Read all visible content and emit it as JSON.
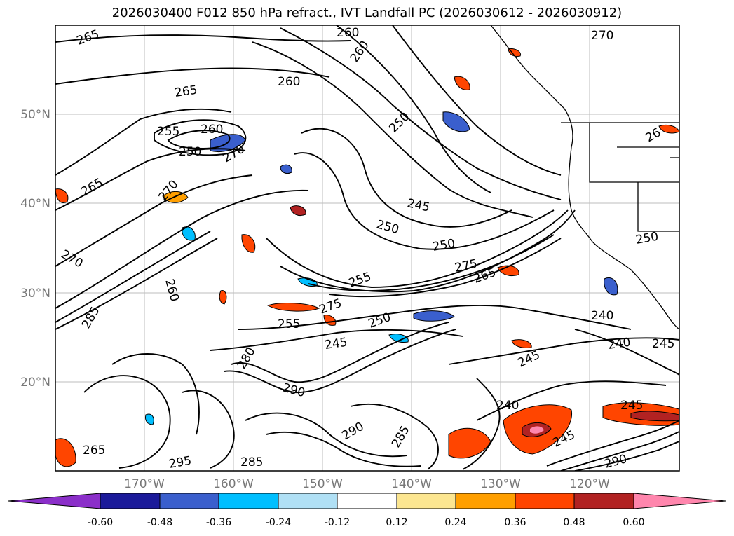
{
  "title": "2026030400 F012 850 hPa refract., IVT Landfall PC (2026030612 - 2026030912)",
  "latitude_labels": [
    "50°N",
    "40°N",
    "30°N",
    "20°N"
  ],
  "longitude_labels": [
    "170°W",
    "160°W",
    "150°W",
    "140°W",
    "130°W",
    "120°W"
  ],
  "contour_labels": [
    {
      "text": "265"
    },
    {
      "text": "260"
    },
    {
      "text": "270"
    },
    {
      "text": "260"
    },
    {
      "text": "260"
    },
    {
      "text": "265"
    },
    {
      "text": "255"
    },
    {
      "text": "260"
    },
    {
      "text": "250"
    },
    {
      "text": "270"
    },
    {
      "text": "250"
    },
    {
      "text": "265"
    },
    {
      "text": "270"
    },
    {
      "text": "245"
    },
    {
      "text": "250"
    },
    {
      "text": "250"
    },
    {
      "text": "270"
    },
    {
      "text": "260"
    },
    {
      "text": "275"
    },
    {
      "text": "265"
    },
    {
      "text": "255"
    },
    {
      "text": "255"
    },
    {
      "text": "275"
    },
    {
      "text": "250"
    },
    {
      "text": "240"
    },
    {
      "text": "245"
    },
    {
      "text": "240"
    },
    {
      "text": "245"
    },
    {
      "text": "245"
    },
    {
      "text": "285"
    },
    {
      "text": "240"
    },
    {
      "text": "245"
    },
    {
      "text": "245"
    },
    {
      "text": "290"
    },
    {
      "text": "295"
    },
    {
      "text": "285"
    },
    {
      "text": "265"
    },
    {
      "text": "290"
    },
    {
      "text": "280"
    },
    {
      "text": "285"
    },
    {
      "text": "290"
    },
    {
      "text": "250"
    },
    {
      "text": "26"
    }
  ],
  "colorbar": {
    "colors": [
      "#8b2fc9",
      "#1b1a9a",
      "#3a5fcd",
      "#00bfff",
      "#b0e0f5",
      "#ffffff",
      "#fce690",
      "#ff9f00",
      "#ff4500",
      "#b22222",
      "#ff86ad"
    ],
    "tick_labels": [
      "-0.60",
      "-0.48",
      "-0.36",
      "-0.24",
      "-0.12",
      "0.12",
      "0.24",
      "0.36",
      "0.48",
      "0.60"
    ]
  }
}
